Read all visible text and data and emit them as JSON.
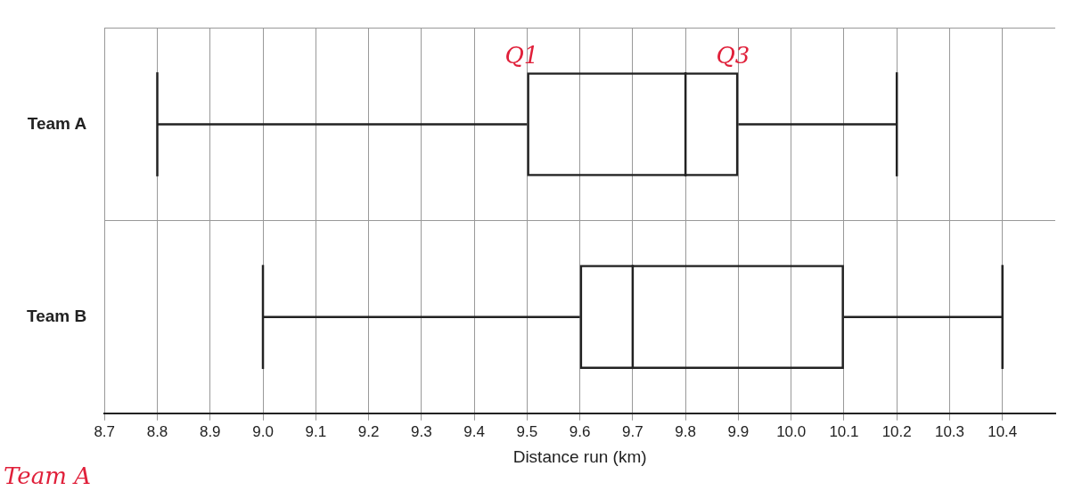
{
  "chart_data": {
    "type": "box",
    "orientation": "horizontal",
    "xlabel": "Distance run (km)",
    "categories": [
      "Team A",
      "Team B"
    ],
    "boxes": [
      {
        "low": 8.8,
        "q1": 9.5,
        "median": 9.8,
        "q3": 9.9,
        "high": 10.2
      },
      {
        "low": 9.0,
        "q1": 9.6,
        "median": 9.7,
        "q3": 10.1,
        "high": 10.4
      }
    ],
    "xlim": [
      8.7,
      10.5
    ],
    "xticks": [
      8.7,
      8.8,
      8.9,
      {
        "value": 9,
        "label": "9.0"
      },
      9.1,
      9.2,
      9.3,
      9.4,
      9.5,
      9.6,
      9.7,
      9.8,
      9.9,
      {
        "value": 10,
        "label": "10.0"
      },
      10.1,
      10.2,
      10.3,
      10.4
    ],
    "grid": true,
    "annotations": [
      {
        "text": "Q1",
        "x": 9.5,
        "y": "Team A"
      },
      {
        "text": "Q3",
        "x": 9.9,
        "y": "Team A"
      },
      "Team A"
    ]
  }
}
